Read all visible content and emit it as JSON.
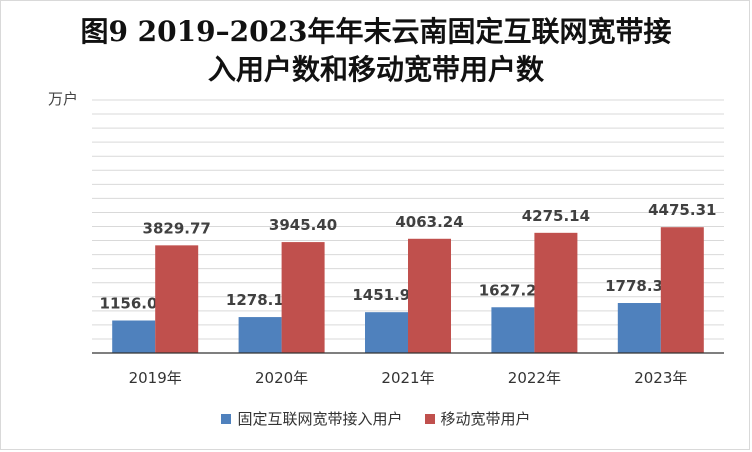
{
  "chart_data": {
    "type": "bar",
    "title_line1": "图9 2019–2023年年末云南固定互联网宽带接",
    "title_line2": "入用户数和移动宽带用户数",
    "ylabel": "万户",
    "categories": [
      "2019年",
      "2020年",
      "2021年",
      "2022年",
      "2023年"
    ],
    "series": [
      {
        "name": "固定互联网宽带接入用户",
        "color": "#4f81bd",
        "values": [
          1156.08,
          1278.12,
          1451.92,
          1627.2,
          1778.32
        ],
        "labels": [
          "1156.08",
          "1278.12",
          "1451.92",
          "1627.20",
          "1778.32"
        ]
      },
      {
        "name": "移动宽带用户",
        "color": "#c0504d",
        "values": [
          3829.77,
          3945.4,
          4063.24,
          4275.14,
          4475.31
        ],
        "labels": [
          "3829.77",
          "3945.40",
          "4063.24",
          "4275.14",
          "4475.31"
        ]
      }
    ],
    "ylim": [
      0,
      9000
    ],
    "grid": true,
    "legend": "bottom"
  }
}
